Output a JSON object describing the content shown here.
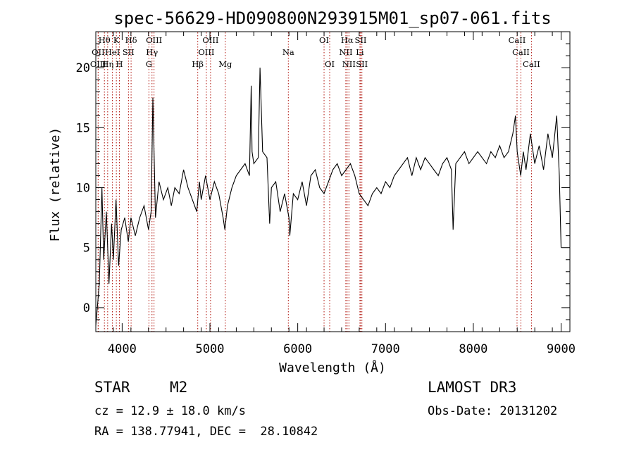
{
  "chart_data": {
    "type": "line",
    "title": "spec-56629-HD090800N293915M01_sp07-061.fits",
    "xlabel": "Wavelength (Å)",
    "ylabel": "Flux (relative)",
    "xlim": [
      3700,
      9100
    ],
    "ylim": [
      -2,
      23
    ],
    "x_ticks": [
      4000,
      5000,
      6000,
      7000,
      8000,
      9000
    ],
    "y_ticks": [
      0,
      5,
      10,
      15,
      20
    ],
    "series": [
      {
        "name": "flux",
        "x": [
          3700,
          3740,
          3770,
          3790,
          3820,
          3850,
          3880,
          3900,
          3930,
          3960,
          3990,
          4030,
          4070,
          4100,
          4150,
          4200,
          4250,
          4300,
          4330,
          4350,
          4380,
          4420,
          4470,
          4520,
          4560,
          4600,
          4650,
          4700,
          4750,
          4800,
          4850,
          4880,
          4900,
          4950,
          5000,
          5050,
          5100,
          5150,
          5170,
          5200,
          5250,
          5300,
          5350,
          5400,
          5450,
          5470,
          5480,
          5500,
          5550,
          5570,
          5600,
          5650,
          5680,
          5700,
          5750,
          5800,
          5850,
          5900,
          5910,
          5950,
          6000,
          6050,
          6100,
          6150,
          6200,
          6250,
          6300,
          6350,
          6400,
          6450,
          6500,
          6550,
          6600,
          6650,
          6700,
          6750,
          6800,
          6850,
          6900,
          6950,
          7000,
          7050,
          7100,
          7150,
          7200,
          7250,
          7300,
          7350,
          7400,
          7450,
          7500,
          7550,
          7600,
          7650,
          7700,
          7750,
          7770,
          7800,
          7850,
          7900,
          7950,
          8000,
          8050,
          8100,
          8150,
          8200,
          8250,
          8300,
          8350,
          8400,
          8450,
          8480,
          8500,
          8540,
          8570,
          8600,
          8650,
          8700,
          8750,
          8800,
          8850,
          8900,
          8950,
          8980,
          9000
        ],
        "y": [
          -1.5,
          2.0,
          10.0,
          4.0,
          8.0,
          2.0,
          7.0,
          4.0,
          9.0,
          3.5,
          6.5,
          7.5,
          5.5,
          7.5,
          6.0,
          7.5,
          8.5,
          6.5,
          8.0,
          17.5,
          7.5,
          10.5,
          9.0,
          10.0,
          8.5,
          10.0,
          9.5,
          11.5,
          10.0,
          9.0,
          8.0,
          10.5,
          9.0,
          11.0,
          9.0,
          10.5,
          9.5,
          7.5,
          6.5,
          8.5,
          10.0,
          11.0,
          11.5,
          12.0,
          11.0,
          18.5,
          13.0,
          12.0,
          12.5,
          20.0,
          13.0,
          12.5,
          7.0,
          10.0,
          10.5,
          8.0,
          9.5,
          7.5,
          6.0,
          9.5,
          9.0,
          10.5,
          8.5,
          11.0,
          11.5,
          10.0,
          9.5,
          10.5,
          11.5,
          12.0,
          11.0,
          11.5,
          12.0,
          11.0,
          9.5,
          9.0,
          8.5,
          9.5,
          10.0,
          9.5,
          10.5,
          10.0,
          11.0,
          11.5,
          12.0,
          12.5,
          11.0,
          12.5,
          11.5,
          12.5,
          12.0,
          11.5,
          11.0,
          12.0,
          12.5,
          11.5,
          6.5,
          12.0,
          12.5,
          13.0,
          12.0,
          12.5,
          13.0,
          12.5,
          12.0,
          13.0,
          12.5,
          13.5,
          12.5,
          13.0,
          14.5,
          16.0,
          13.0,
          11.0,
          13.0,
          11.5,
          14.5,
          12.0,
          13.5,
          11.5,
          14.5,
          12.5,
          16.0,
          11.0,
          5.0
        ]
      }
    ],
    "line_markers": [
      {
        "label": "Hθ",
        "x": 3798,
        "row": 0
      },
      {
        "label": "K",
        "x": 3934,
        "row": 0
      },
      {
        "label": "Hδ",
        "x": 4102,
        "row": 0
      },
      {
        "label": "OIII",
        "x": 4363,
        "row": 0
      },
      {
        "label": "OIII",
        "x": 5007,
        "row": 0
      },
      {
        "label": "OI",
        "x": 6300,
        "row": 0
      },
      {
        "label": "Hα",
        "x": 6563,
        "row": 0
      },
      {
        "label": "SII",
        "x": 6717,
        "row": 0
      },
      {
        "label": "CaII",
        "x": 8498,
        "row": 0
      },
      {
        "label": "OII",
        "x": 3727,
        "row": 1
      },
      {
        "label": "HeI",
        "x": 3889,
        "row": 1
      },
      {
        "label": "SII",
        "x": 4072,
        "row": 1
      },
      {
        "label": "Hγ",
        "x": 4340,
        "row": 1
      },
      {
        "label": "OIII",
        "x": 4959,
        "row": 1
      },
      {
        "label": "Na",
        "x": 5893,
        "row": 1
      },
      {
        "label": "NII",
        "x": 6548,
        "row": 1
      },
      {
        "label": "Li",
        "x": 6708,
        "row": 1
      },
      {
        "label": "CaII",
        "x": 8542,
        "row": 1
      },
      {
        "label": "OIII",
        "x": 3727,
        "row": 2
      },
      {
        "label": "Hη",
        "x": 3835,
        "row": 2
      },
      {
        "label": "H",
        "x": 3969,
        "row": 2
      },
      {
        "label": "G",
        "x": 4305,
        "row": 2
      },
      {
        "label": "Hβ",
        "x": 4861,
        "row": 2
      },
      {
        "label": "Mg",
        "x": 5175,
        "row": 2
      },
      {
        "label": "OI",
        "x": 6364,
        "row": 2
      },
      {
        "label": "NII",
        "x": 6583,
        "row": 2
      },
      {
        "label": "SII",
        "x": 6731,
        "row": 2
      },
      {
        "label": "CaII",
        "x": 8662,
        "row": 2
      }
    ]
  },
  "info": {
    "class_label": "STAR",
    "subclass": "M2",
    "survey": "LAMOST DR3",
    "redshift_text": "cz = 12.9 ± 18.0 km/s",
    "obs_date_text": "Obs-Date: 20131202",
    "coords_text": "RA = 138.77941, DEC =  28.10842"
  }
}
